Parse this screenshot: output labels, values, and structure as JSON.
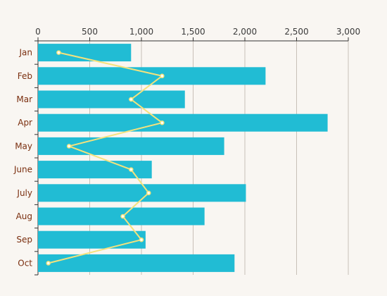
{
  "colors": {
    "background": "#f9f6f2",
    "bar": "#21bcd4",
    "line": "#f5e27c",
    "grid": "#c8c0b8",
    "axis": "#333333",
    "category_text": "#7a2e0e"
  },
  "chart_data": {
    "type": "bar",
    "orientation": "horizontal",
    "title": "",
    "xlabel": "",
    "ylabel": "",
    "xlim": [
      0,
      3000
    ],
    "x_ticks": [
      "0",
      "500",
      "1,000",
      "1,500",
      "2,000",
      "2,500",
      "3,000"
    ],
    "x_tick_values": [
      0,
      500,
      1000,
      1500,
      2000,
      2500,
      3000
    ],
    "x_axis_position": "top",
    "grid": true,
    "legend": "none",
    "categories": [
      "Jan",
      "Feb",
      "Mar",
      "Apr",
      "May",
      "June",
      "July",
      "Aug",
      "Sep",
      "Oct"
    ],
    "series": [
      {
        "type": "bar",
        "values": [
          900,
          2200,
          1420,
          2800,
          1800,
          1100,
          2010,
          1610,
          1040,
          1900
        ]
      },
      {
        "type": "line",
        "values": [
          200,
          1200,
          900,
          1200,
          300,
          900,
          1070,
          820,
          1000,
          100
        ]
      }
    ]
  }
}
